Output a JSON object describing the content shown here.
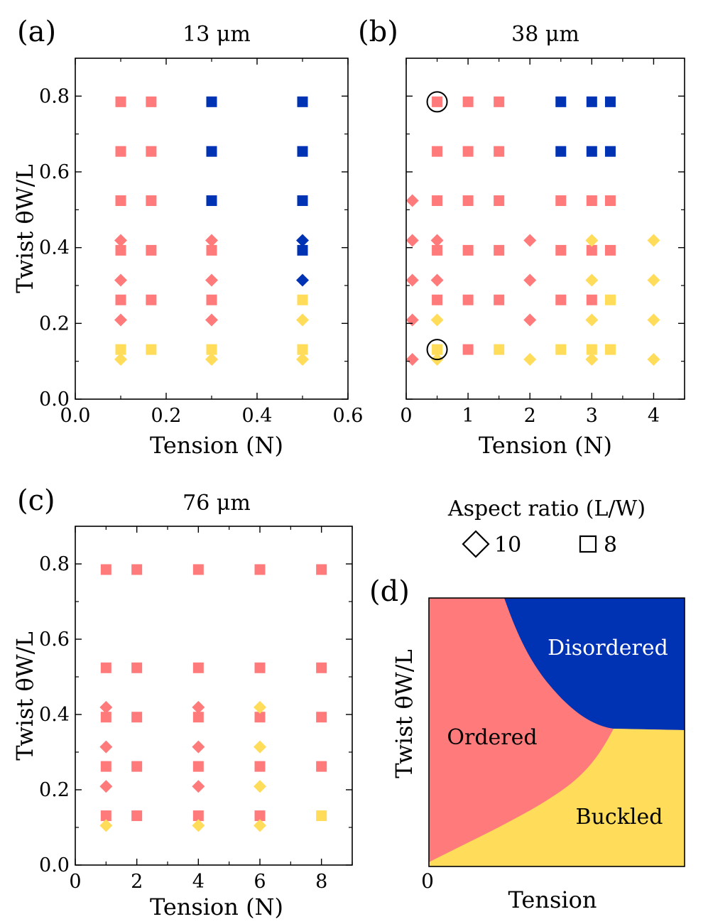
{
  "colors": {
    "ordered": "#FF7B7B",
    "disordered": "#0032B4",
    "buckled": "#FFDC5A",
    "axis": "#000000"
  },
  "legend": {
    "title": "Aspect ratio (L/W)",
    "diamond_label": "10",
    "square_label": "8"
  },
  "chart_data": [
    {
      "panel": "(a)",
      "type": "scatter",
      "title": "13 μm",
      "xlabel": "Tension (N)",
      "ylabel": "Twist θW/L",
      "xlim": [
        0,
        0.6
      ],
      "ylim": [
        0,
        0.9
      ],
      "xticks": [
        0.0,
        0.2,
        0.4,
        0.6
      ],
      "xtick_labels": [
        "0.0",
        "0.2",
        "0.4",
        "0.6"
      ],
      "yticks": [
        0.0,
        0.2,
        0.4,
        0.6,
        0.8
      ],
      "ytick_labels": [
        "0.0",
        "0.2",
        "0.4",
        "0.6",
        "0.8"
      ],
      "points": [
        {
          "x": 0.1,
          "y": 0.785,
          "shape": "square",
          "phase": "ordered"
        },
        {
          "x": 0.1,
          "y": 0.654,
          "shape": "square",
          "phase": "ordered"
        },
        {
          "x": 0.1,
          "y": 0.524,
          "shape": "square",
          "phase": "ordered"
        },
        {
          "x": 0.1,
          "y": 0.393,
          "shape": "square",
          "phase": "ordered"
        },
        {
          "x": 0.1,
          "y": 0.262,
          "shape": "square",
          "phase": "ordered"
        },
        {
          "x": 0.1,
          "y": 0.131,
          "shape": "square",
          "phase": "buckled"
        },
        {
          "x": 0.1,
          "y": 0.419,
          "shape": "diamond",
          "phase": "ordered"
        },
        {
          "x": 0.1,
          "y": 0.314,
          "shape": "diamond",
          "phase": "ordered"
        },
        {
          "x": 0.1,
          "y": 0.209,
          "shape": "diamond",
          "phase": "ordered"
        },
        {
          "x": 0.1,
          "y": 0.105,
          "shape": "diamond",
          "phase": "buckled"
        },
        {
          "x": 0.167,
          "y": 0.785,
          "shape": "square",
          "phase": "ordered"
        },
        {
          "x": 0.167,
          "y": 0.654,
          "shape": "square",
          "phase": "ordered"
        },
        {
          "x": 0.167,
          "y": 0.524,
          "shape": "square",
          "phase": "ordered"
        },
        {
          "x": 0.167,
          "y": 0.393,
          "shape": "square",
          "phase": "ordered"
        },
        {
          "x": 0.167,
          "y": 0.262,
          "shape": "square",
          "phase": "ordered"
        },
        {
          "x": 0.167,
          "y": 0.131,
          "shape": "square",
          "phase": "buckled"
        },
        {
          "x": 0.3,
          "y": 0.785,
          "shape": "square",
          "phase": "disordered"
        },
        {
          "x": 0.3,
          "y": 0.654,
          "shape": "square",
          "phase": "disordered"
        },
        {
          "x": 0.3,
          "y": 0.524,
          "shape": "square",
          "phase": "disordered"
        },
        {
          "x": 0.3,
          "y": 0.393,
          "shape": "square",
          "phase": "ordered"
        },
        {
          "x": 0.3,
          "y": 0.262,
          "shape": "square",
          "phase": "ordered"
        },
        {
          "x": 0.3,
          "y": 0.131,
          "shape": "square",
          "phase": "buckled"
        },
        {
          "x": 0.3,
          "y": 0.419,
          "shape": "diamond",
          "phase": "ordered"
        },
        {
          "x": 0.3,
          "y": 0.314,
          "shape": "diamond",
          "phase": "ordered"
        },
        {
          "x": 0.3,
          "y": 0.209,
          "shape": "diamond",
          "phase": "ordered"
        },
        {
          "x": 0.3,
          "y": 0.105,
          "shape": "diamond",
          "phase": "buckled"
        },
        {
          "x": 0.5,
          "y": 0.785,
          "shape": "square",
          "phase": "disordered"
        },
        {
          "x": 0.5,
          "y": 0.654,
          "shape": "square",
          "phase": "disordered"
        },
        {
          "x": 0.5,
          "y": 0.524,
          "shape": "square",
          "phase": "disordered"
        },
        {
          "x": 0.5,
          "y": 0.393,
          "shape": "square",
          "phase": "disordered"
        },
        {
          "x": 0.5,
          "y": 0.262,
          "shape": "square",
          "phase": "buckled"
        },
        {
          "x": 0.5,
          "y": 0.131,
          "shape": "square",
          "phase": "buckled"
        },
        {
          "x": 0.5,
          "y": 0.419,
          "shape": "diamond",
          "phase": "disordered"
        },
        {
          "x": 0.5,
          "y": 0.314,
          "shape": "diamond",
          "phase": "disordered"
        },
        {
          "x": 0.5,
          "y": 0.209,
          "shape": "diamond",
          "phase": "buckled"
        },
        {
          "x": 0.5,
          "y": 0.105,
          "shape": "diamond",
          "phase": "buckled"
        }
      ],
      "circled": []
    },
    {
      "panel": "(b)",
      "type": "scatter",
      "title": "38 μm",
      "xlabel": "Tension (N)",
      "ylabel": "",
      "xlim": [
        0,
        4.5
      ],
      "ylim": [
        0,
        0.9
      ],
      "xticks": [
        0,
        1,
        2,
        3,
        4
      ],
      "xtick_labels": [
        "0",
        "1",
        "2",
        "3",
        "4"
      ],
      "yticks": [
        0.0,
        0.2,
        0.4,
        0.6,
        0.8
      ],
      "ytick_labels": [],
      "points": [
        {
          "x": 0.1,
          "y": 0.524,
          "shape": "diamond",
          "phase": "ordered"
        },
        {
          "x": 0.1,
          "y": 0.419,
          "shape": "diamond",
          "phase": "ordered"
        },
        {
          "x": 0.1,
          "y": 0.314,
          "shape": "diamond",
          "phase": "ordered"
        },
        {
          "x": 0.1,
          "y": 0.209,
          "shape": "diamond",
          "phase": "ordered"
        },
        {
          "x": 0.1,
          "y": 0.105,
          "shape": "diamond",
          "phase": "ordered"
        },
        {
          "x": 0.5,
          "y": 0.785,
          "shape": "square",
          "phase": "ordered"
        },
        {
          "x": 0.5,
          "y": 0.654,
          "shape": "square",
          "phase": "ordered"
        },
        {
          "x": 0.5,
          "y": 0.524,
          "shape": "square",
          "phase": "ordered"
        },
        {
          "x": 0.5,
          "y": 0.393,
          "shape": "square",
          "phase": "ordered"
        },
        {
          "x": 0.5,
          "y": 0.262,
          "shape": "square",
          "phase": "ordered"
        },
        {
          "x": 0.5,
          "y": 0.131,
          "shape": "square",
          "phase": "buckled"
        },
        {
          "x": 0.5,
          "y": 0.419,
          "shape": "diamond",
          "phase": "ordered"
        },
        {
          "x": 0.5,
          "y": 0.314,
          "shape": "diamond",
          "phase": "ordered"
        },
        {
          "x": 0.5,
          "y": 0.209,
          "shape": "diamond",
          "phase": "buckled"
        },
        {
          "x": 0.5,
          "y": 0.105,
          "shape": "diamond",
          "phase": "buckled"
        },
        {
          "x": 1.0,
          "y": 0.785,
          "shape": "square",
          "phase": "ordered"
        },
        {
          "x": 1.0,
          "y": 0.654,
          "shape": "square",
          "phase": "ordered"
        },
        {
          "x": 1.0,
          "y": 0.524,
          "shape": "square",
          "phase": "ordered"
        },
        {
          "x": 1.0,
          "y": 0.393,
          "shape": "square",
          "phase": "ordered"
        },
        {
          "x": 1.0,
          "y": 0.262,
          "shape": "square",
          "phase": "ordered"
        },
        {
          "x": 1.0,
          "y": 0.131,
          "shape": "square",
          "phase": "ordered"
        },
        {
          "x": 1.5,
          "y": 0.785,
          "shape": "square",
          "phase": "ordered"
        },
        {
          "x": 1.5,
          "y": 0.654,
          "shape": "square",
          "phase": "ordered"
        },
        {
          "x": 1.5,
          "y": 0.524,
          "shape": "square",
          "phase": "ordered"
        },
        {
          "x": 1.5,
          "y": 0.393,
          "shape": "square",
          "phase": "ordered"
        },
        {
          "x": 1.5,
          "y": 0.262,
          "shape": "square",
          "phase": "ordered"
        },
        {
          "x": 1.5,
          "y": 0.131,
          "shape": "square",
          "phase": "buckled"
        },
        {
          "x": 2.0,
          "y": 0.419,
          "shape": "diamond",
          "phase": "ordered"
        },
        {
          "x": 2.0,
          "y": 0.314,
          "shape": "diamond",
          "phase": "ordered"
        },
        {
          "x": 2.0,
          "y": 0.209,
          "shape": "diamond",
          "phase": "ordered"
        },
        {
          "x": 2.0,
          "y": 0.105,
          "shape": "diamond",
          "phase": "buckled"
        },
        {
          "x": 2.5,
          "y": 0.785,
          "shape": "square",
          "phase": "disordered"
        },
        {
          "x": 2.5,
          "y": 0.654,
          "shape": "square",
          "phase": "disordered"
        },
        {
          "x": 2.5,
          "y": 0.524,
          "shape": "square",
          "phase": "ordered"
        },
        {
          "x": 2.5,
          "y": 0.393,
          "shape": "square",
          "phase": "ordered"
        },
        {
          "x": 2.5,
          "y": 0.262,
          "shape": "square",
          "phase": "ordered"
        },
        {
          "x": 2.5,
          "y": 0.131,
          "shape": "square",
          "phase": "buckled"
        },
        {
          "x": 3.0,
          "y": 0.785,
          "shape": "square",
          "phase": "disordered"
        },
        {
          "x": 3.0,
          "y": 0.654,
          "shape": "square",
          "phase": "disordered"
        },
        {
          "x": 3.0,
          "y": 0.524,
          "shape": "square",
          "phase": "ordered"
        },
        {
          "x": 3.0,
          "y": 0.393,
          "shape": "square",
          "phase": "ordered"
        },
        {
          "x": 3.0,
          "y": 0.262,
          "shape": "square",
          "phase": "ordered"
        },
        {
          "x": 3.0,
          "y": 0.131,
          "shape": "square",
          "phase": "buckled"
        },
        {
          "x": 3.0,
          "y": 0.419,
          "shape": "diamond",
          "phase": "buckled"
        },
        {
          "x": 3.0,
          "y": 0.314,
          "shape": "diamond",
          "phase": "buckled"
        },
        {
          "x": 3.0,
          "y": 0.209,
          "shape": "diamond",
          "phase": "buckled"
        },
        {
          "x": 3.0,
          "y": 0.105,
          "shape": "diamond",
          "phase": "buckled"
        },
        {
          "x": 3.3,
          "y": 0.785,
          "shape": "square",
          "phase": "disordered"
        },
        {
          "x": 3.3,
          "y": 0.654,
          "shape": "square",
          "phase": "disordered"
        },
        {
          "x": 3.3,
          "y": 0.524,
          "shape": "square",
          "phase": "ordered"
        },
        {
          "x": 3.3,
          "y": 0.393,
          "shape": "square",
          "phase": "ordered"
        },
        {
          "x": 3.3,
          "y": 0.262,
          "shape": "square",
          "phase": "buckled"
        },
        {
          "x": 3.3,
          "y": 0.131,
          "shape": "square",
          "phase": "buckled"
        },
        {
          "x": 4.0,
          "y": 0.419,
          "shape": "diamond",
          "phase": "buckled"
        },
        {
          "x": 4.0,
          "y": 0.314,
          "shape": "diamond",
          "phase": "buckled"
        },
        {
          "x": 4.0,
          "y": 0.209,
          "shape": "diamond",
          "phase": "buckled"
        },
        {
          "x": 4.0,
          "y": 0.105,
          "shape": "diamond",
          "phase": "buckled"
        }
      ],
      "circled": [
        {
          "x": 0.5,
          "y": 0.785
        },
        {
          "x": 0.5,
          "y": 0.131
        }
      ]
    },
    {
      "panel": "(c)",
      "type": "scatter",
      "title": "76 μm",
      "xlabel": "Tension (N)",
      "ylabel": "Twist θW/L",
      "xlim": [
        0,
        9
      ],
      "ylim": [
        0,
        0.9
      ],
      "xticks": [
        0,
        2,
        4,
        6,
        8
      ],
      "xtick_labels": [
        "0",
        "2",
        "4",
        "6",
        "8"
      ],
      "yticks": [
        0.0,
        0.2,
        0.4,
        0.6,
        0.8
      ],
      "ytick_labels": [
        "0.0",
        "0.2",
        "0.4",
        "0.6",
        "0.8"
      ],
      "points": [
        {
          "x": 1,
          "y": 0.785,
          "shape": "square",
          "phase": "ordered"
        },
        {
          "x": 1,
          "y": 0.524,
          "shape": "square",
          "phase": "ordered"
        },
        {
          "x": 1,
          "y": 0.393,
          "shape": "square",
          "phase": "ordered"
        },
        {
          "x": 1,
          "y": 0.262,
          "shape": "square",
          "phase": "ordered"
        },
        {
          "x": 1,
          "y": 0.131,
          "shape": "square",
          "phase": "ordered"
        },
        {
          "x": 1,
          "y": 0.419,
          "shape": "diamond",
          "phase": "ordered"
        },
        {
          "x": 1,
          "y": 0.314,
          "shape": "diamond",
          "phase": "ordered"
        },
        {
          "x": 1,
          "y": 0.209,
          "shape": "diamond",
          "phase": "ordered"
        },
        {
          "x": 1,
          "y": 0.105,
          "shape": "diamond",
          "phase": "buckled"
        },
        {
          "x": 2,
          "y": 0.785,
          "shape": "square",
          "phase": "ordered"
        },
        {
          "x": 2,
          "y": 0.524,
          "shape": "square",
          "phase": "ordered"
        },
        {
          "x": 2,
          "y": 0.393,
          "shape": "square",
          "phase": "ordered"
        },
        {
          "x": 2,
          "y": 0.262,
          "shape": "square",
          "phase": "ordered"
        },
        {
          "x": 2,
          "y": 0.131,
          "shape": "square",
          "phase": "ordered"
        },
        {
          "x": 4,
          "y": 0.785,
          "shape": "square",
          "phase": "ordered"
        },
        {
          "x": 4,
          "y": 0.524,
          "shape": "square",
          "phase": "ordered"
        },
        {
          "x": 4,
          "y": 0.393,
          "shape": "square",
          "phase": "ordered"
        },
        {
          "x": 4,
          "y": 0.262,
          "shape": "square",
          "phase": "ordered"
        },
        {
          "x": 4,
          "y": 0.131,
          "shape": "square",
          "phase": "ordered"
        },
        {
          "x": 4,
          "y": 0.419,
          "shape": "diamond",
          "phase": "ordered"
        },
        {
          "x": 4,
          "y": 0.314,
          "shape": "diamond",
          "phase": "ordered"
        },
        {
          "x": 4,
          "y": 0.209,
          "shape": "diamond",
          "phase": "ordered"
        },
        {
          "x": 4,
          "y": 0.105,
          "shape": "diamond",
          "phase": "buckled"
        },
        {
          "x": 6,
          "y": 0.785,
          "shape": "square",
          "phase": "ordered"
        },
        {
          "x": 6,
          "y": 0.524,
          "shape": "square",
          "phase": "ordered"
        },
        {
          "x": 6,
          "y": 0.393,
          "shape": "square",
          "phase": "ordered"
        },
        {
          "x": 6,
          "y": 0.262,
          "shape": "square",
          "phase": "ordered"
        },
        {
          "x": 6,
          "y": 0.131,
          "shape": "square",
          "phase": "ordered"
        },
        {
          "x": 6,
          "y": 0.419,
          "shape": "diamond",
          "phase": "buckled"
        },
        {
          "x": 6,
          "y": 0.314,
          "shape": "diamond",
          "phase": "buckled"
        },
        {
          "x": 6,
          "y": 0.209,
          "shape": "diamond",
          "phase": "buckled"
        },
        {
          "x": 6,
          "y": 0.105,
          "shape": "diamond",
          "phase": "buckled"
        },
        {
          "x": 8,
          "y": 0.785,
          "shape": "square",
          "phase": "ordered"
        },
        {
          "x": 8,
          "y": 0.524,
          "shape": "square",
          "phase": "ordered"
        },
        {
          "x": 8,
          "y": 0.393,
          "shape": "square",
          "phase": "ordered"
        },
        {
          "x": 8,
          "y": 0.262,
          "shape": "square",
          "phase": "ordered"
        },
        {
          "x": 8,
          "y": 0.131,
          "shape": "square",
          "phase": "buckled"
        }
      ],
      "circled": []
    },
    {
      "panel": "(d)",
      "type": "area",
      "title": "",
      "xlabel": "Tension",
      "ylabel": "Twist θW/L",
      "origin_label": "0",
      "regions": [
        {
          "name": "Ordered",
          "label": "Ordered",
          "phase": "ordered"
        },
        {
          "name": "Disordered",
          "label": "Disordered",
          "phase": "disordered"
        },
        {
          "name": "Buckled",
          "label": "Buckled",
          "phase": "buckled"
        }
      ]
    }
  ]
}
